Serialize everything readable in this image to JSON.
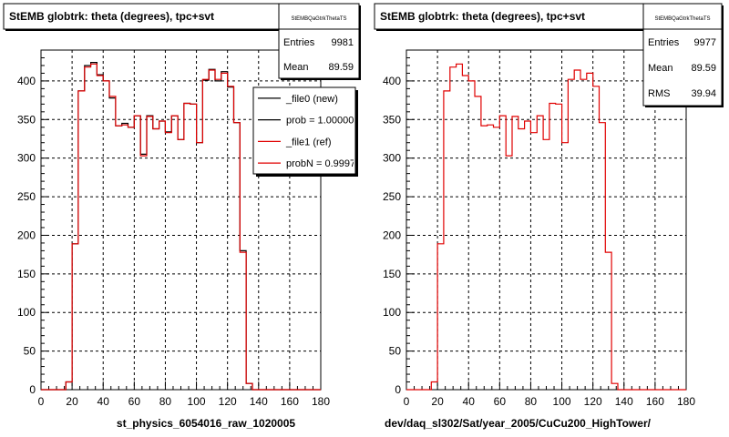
{
  "footer_note": "",
  "chart_data": [
    {
      "type": "histogram",
      "title": "StEMB globtrk: theta (degrees), tpc+svt",
      "xlabel": "st_physics_6054016_raw_1020005",
      "ylabel": "",
      "xlim": [
        0,
        180
      ],
      "ylim": [
        0,
        440
      ],
      "x_ticks": [
        0,
        20,
        40,
        60,
        80,
        100,
        120,
        140,
        160,
        180
      ],
      "y_ticks": [
        0,
        50,
        100,
        150,
        200,
        250,
        300,
        350,
        400
      ],
      "grid": true,
      "bin_width": 4,
      "stats": {
        "name": "StEMBQaGtrkThetaTS",
        "rows": [
          {
            "label": "Entries",
            "value": "9981"
          },
          {
            "label": "Mean",
            "value": "89.59"
          }
        ]
      },
      "legend": {
        "position": "top-right",
        "entries": [
          {
            "label": "_file0 (new)",
            "color": "#000000"
          },
          {
            "label": "prob = 1.000000",
            "color": "#000000"
          },
          {
            "label": "_file1 (ref)",
            "color": "#e00000"
          },
          {
            "label": "probN = 0.99974",
            "color": "#e00000"
          }
        ]
      },
      "series": [
        {
          "name": "_file0 (new)",
          "color": "#000000",
          "values": [
            0,
            0,
            0,
            0,
            10,
            189,
            387,
            420,
            424,
            408,
            400,
            378,
            342,
            345,
            340,
            355,
            305,
            355,
            338,
            348,
            334,
            355,
            324,
            371,
            370,
            320,
            401,
            415,
            400,
            412,
            392,
            346,
            180,
            8,
            0,
            0,
            0,
            0,
            0,
            0,
            0,
            0,
            0,
            0,
            0
          ]
        },
        {
          "name": "_file1 (ref)",
          "color": "#e00000",
          "values": [
            0,
            0,
            0,
            0,
            10,
            189,
            387,
            418,
            422,
            407,
            400,
            380,
            342,
            343,
            340,
            355,
            303,
            354,
            338,
            348,
            333,
            355,
            324,
            371,
            370,
            320,
            402,
            414,
            402,
            410,
            393,
            346,
            178,
            8,
            0,
            0,
            0,
            0,
            0,
            0,
            0,
            0,
            0,
            0,
            0
          ]
        }
      ]
    },
    {
      "type": "histogram",
      "title": "StEMB globtrk: theta (degrees), tpc+svt",
      "xlabel": "dev/daq_sl302/Sat/year_2005/CuCu200_HighTower/",
      "ylabel": "",
      "xlim": [
        0,
        180
      ],
      "ylim": [
        0,
        440
      ],
      "x_ticks": [
        0,
        20,
        40,
        60,
        80,
        100,
        120,
        140,
        160,
        180
      ],
      "y_ticks": [
        0,
        50,
        100,
        150,
        200,
        250,
        300,
        350,
        400
      ],
      "grid": true,
      "bin_width": 4,
      "stats": {
        "name": "StEMBQaGtrkThetaTS",
        "rows": [
          {
            "label": "Entries",
            "value": "9977"
          },
          {
            "label": "Mean",
            "value": "89.59"
          },
          {
            "label": "RMS",
            "value": "39.94"
          }
        ]
      },
      "series": [
        {
          "name": "_file1 (ref)",
          "color": "#e00000",
          "values": [
            0,
            0,
            0,
            0,
            10,
            189,
            387,
            418,
            422,
            407,
            400,
            380,
            342,
            343,
            340,
            355,
            303,
            354,
            338,
            348,
            333,
            355,
            324,
            371,
            370,
            320,
            402,
            414,
            402,
            410,
            393,
            346,
            178,
            8,
            0,
            0,
            0,
            0,
            0,
            0,
            0,
            0,
            0,
            0,
            0
          ]
        }
      ]
    }
  ]
}
